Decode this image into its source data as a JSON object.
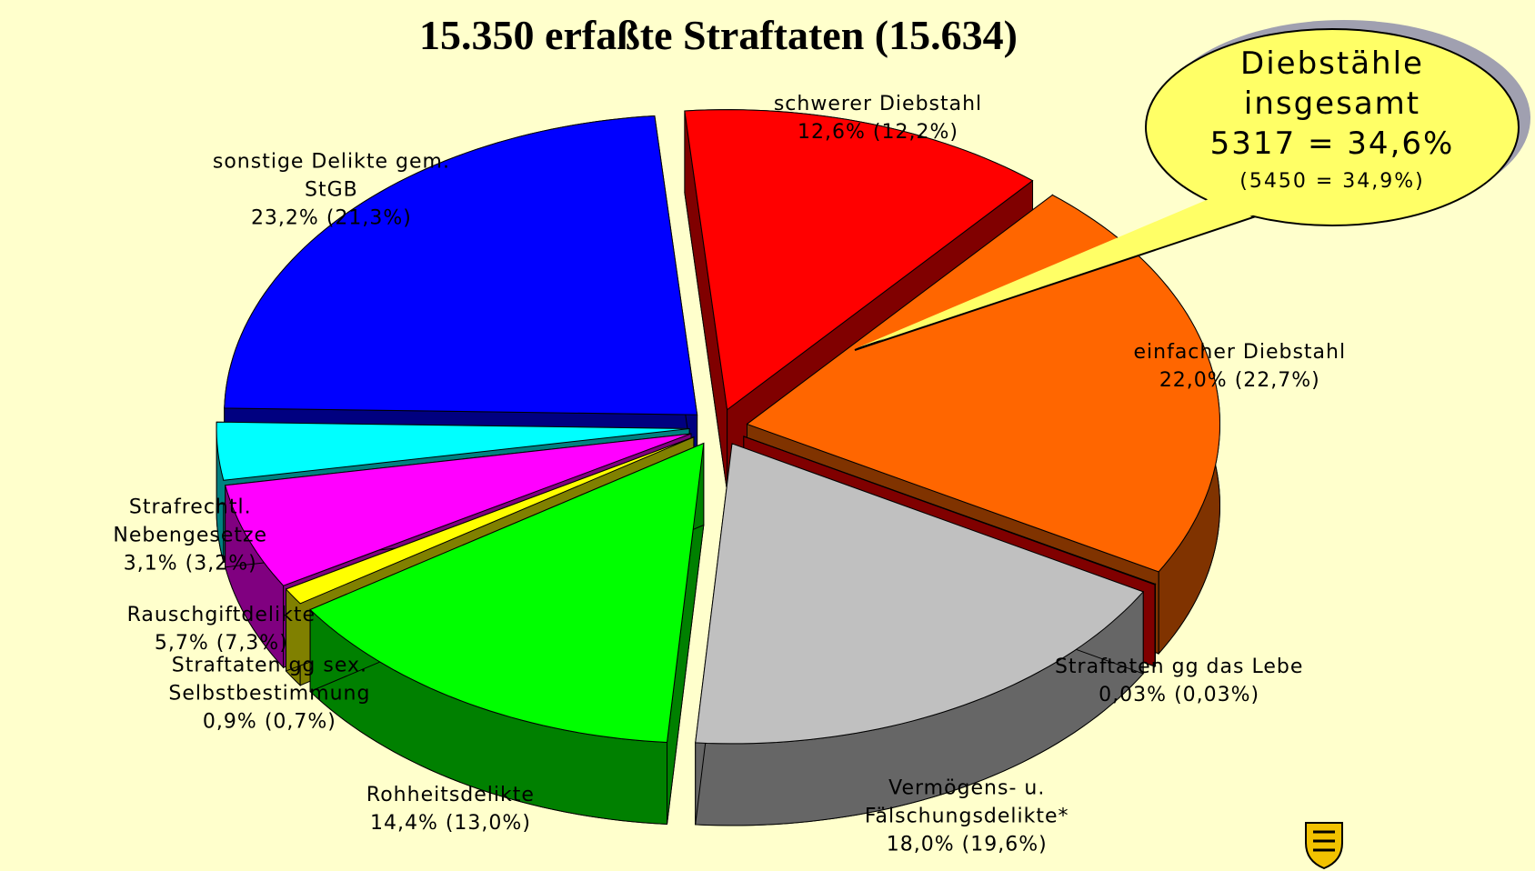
{
  "chart_data": {
    "type": "pie",
    "title": "15.350 erfaßte Straftaten  (15.634)",
    "categories": [
      "schwerer Diebstahl",
      "einfacher Diebstahl",
      "Straftaten gg das Lebe",
      "Vermögens- u. Fälschungsdelikte*",
      "Rohheitsdelikte",
      "Straftaten gg sex. Selbstbestimmung",
      "Rauschgiftdelikte",
      "Strafrechtl. Nebengesetze",
      "sonstige Delikte gem. StGB"
    ],
    "values": [
      12.6,
      22.0,
      0.03,
      18.0,
      14.4,
      0.9,
      5.7,
      3.1,
      23.2
    ],
    "value_labels": [
      "12,6%",
      "22,0%",
      "0,03%",
      "18,0%",
      "14,4%",
      "0,9%",
      "5,7%",
      "3,1%",
      "23,2%"
    ],
    "previous_values": [
      12.2,
      22.7,
      0.03,
      19.6,
      13.0,
      0.7,
      7.3,
      3.2,
      21.3
    ],
    "previous_value_labels": [
      "(12,2%)",
      "(22,7%)",
      "(0,03%)",
      "(19,6%)",
      "(13,0%)",
      "(0,7%)",
      "(7,3%)",
      "(3,2%)",
      "(21,3%)"
    ],
    "colors": [
      "#ff0000",
      "#ff6600",
      "#800000",
      "#c0c0c0",
      "#00ff00",
      "#ffff00",
      "#ff00ff",
      "#00ffff",
      "#0000ff"
    ],
    "side_colors": [
      "#800000",
      "#803300",
      "#800000",
      "#666666",
      "#008000",
      "#808000",
      "#800080",
      "#008080",
      "#000080"
    ],
    "callout": {
      "lines": [
        "Diebstähle",
        "insgesamt",
        "5317 = 34,6%"
      ],
      "previous": "(5450 = 34,9%)"
    }
  }
}
